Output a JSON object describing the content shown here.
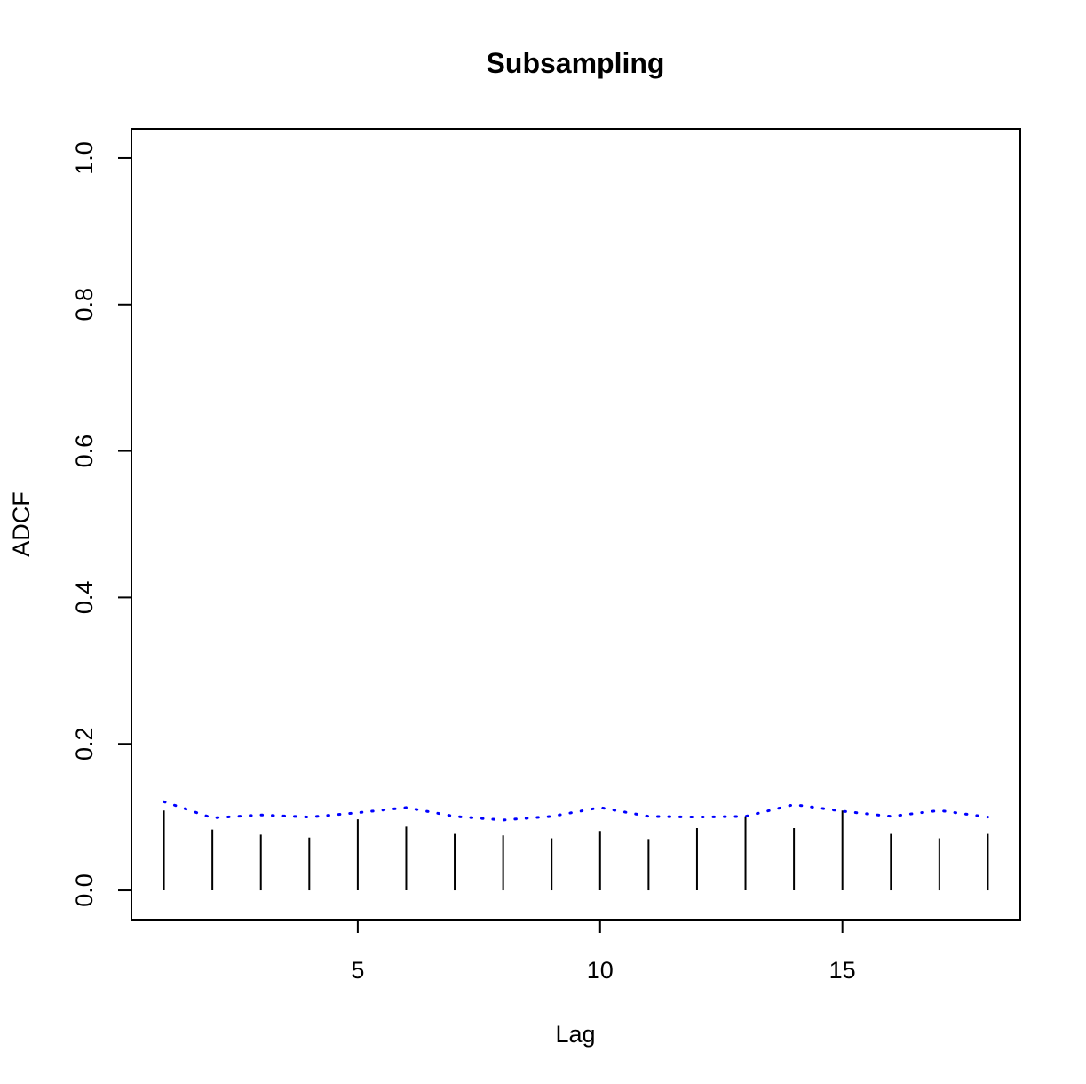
{
  "chart_data": {
    "type": "bar",
    "title": "Subsampling",
    "xlabel": "Lag",
    "ylabel": "ADCF",
    "xlim": [
      0.33,
      18.67
    ],
    "ylim": [
      -0.04,
      1.04
    ],
    "x_ticks": [
      5,
      10,
      15
    ],
    "y_ticks": [
      0.0,
      0.2,
      0.4,
      0.6,
      0.8,
      1.0
    ],
    "y_tick_labels": [
      "0.0",
      "0.2",
      "0.4",
      "0.6",
      "0.8",
      "1.0"
    ],
    "grid": false,
    "series": [
      {
        "style": "vertical-lines",
        "color": "#000000",
        "x": [
          1,
          2,
          3,
          4,
          5,
          6,
          7,
          8,
          9,
          10,
          11,
          12,
          13,
          14,
          15,
          16,
          17,
          18
        ],
        "values": [
          0.109,
          0.083,
          0.076,
          0.072,
          0.097,
          0.087,
          0.077,
          0.075,
          0.071,
          0.081,
          0.07,
          0.085,
          0.101,
          0.085,
          0.109,
          0.077,
          0.071,
          0.077
        ]
      },
      {
        "style": "dotted-line",
        "color": "#0000ff",
        "x": [
          1,
          2,
          3,
          4,
          5,
          6,
          7,
          8,
          9,
          10,
          11,
          12,
          13,
          14,
          15,
          16,
          17,
          18
        ],
        "values": [
          0.121,
          0.099,
          0.103,
          0.1,
          0.106,
          0.113,
          0.101,
          0.096,
          0.101,
          0.113,
          0.101,
          0.1,
          0.101,
          0.117,
          0.108,
          0.101,
          0.109,
          0.1
        ]
      }
    ]
  }
}
